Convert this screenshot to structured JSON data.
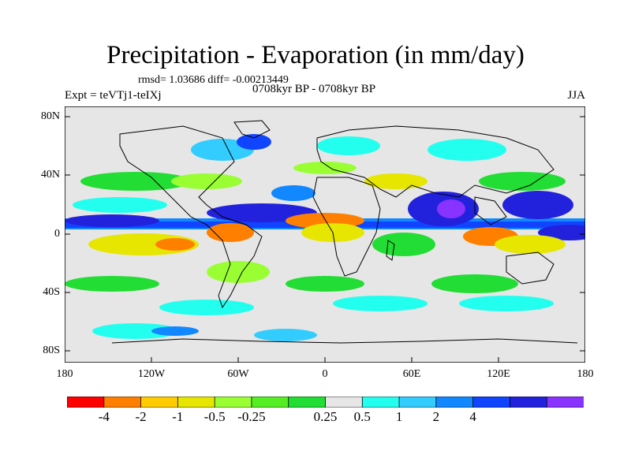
{
  "title": "Precipitation - Evaporation (in mm/day)",
  "stats": "rmsd= 1.03686 diff= -0.00213449",
  "period": "0708kyr BP - 0708kyr BP",
  "expt": "Expt = teVTj1-teIXj",
  "season": "JJA",
  "map": {
    "lat_ticks": [
      "80N",
      "40N",
      "0",
      "40S",
      "80S"
    ],
    "lon_ticks": [
      "180",
      "120W",
      "60W",
      "0",
      "60E",
      "120E",
      "180"
    ],
    "background_color": "#e6e6e6"
  },
  "colorbar": {
    "colors": [
      "#ff0000",
      "#ff8000",
      "#ffcc00",
      "#e6e600",
      "#99ff33",
      "#55ee22",
      "#22dd33",
      "#e6e6e6",
      "#22ffee",
      "#33ccff",
      "#1188ff",
      "#1144ff",
      "#2222dd",
      "#8833ff"
    ],
    "labels": [
      "-4",
      "-2",
      "-1",
      "-0.5",
      "-0.25",
      "0.25",
      "0.5",
      "1",
      "2",
      "4"
    ]
  }
}
